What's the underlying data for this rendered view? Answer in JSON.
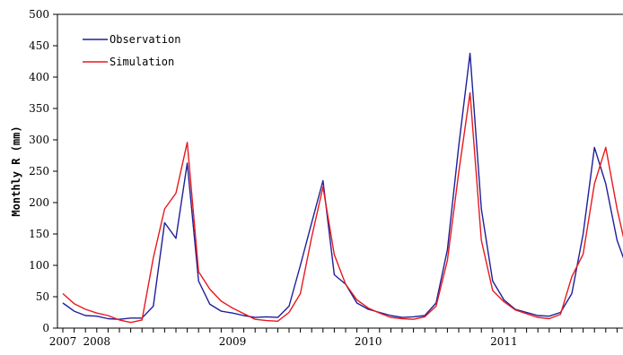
{
  "chart_data": {
    "type": "line",
    "title": "",
    "xlabel": "",
    "ylabel": "Monthly R (mm)",
    "ylim": [
      0,
      500
    ],
    "yticks": [
      0,
      50,
      100,
      150,
      200,
      250,
      300,
      350,
      400,
      450,
      500
    ],
    "xlim": [
      0,
      56
    ],
    "xtick_labels": [
      {
        "label": "2007",
        "x": 0
      },
      {
        "label": "2008",
        "x": 3
      },
      {
        "label": "2009",
        "x": 15
      },
      {
        "label": "2010",
        "x": 27
      },
      {
        "label": "2011",
        "x": 39
      }
    ],
    "legend": {
      "position": "top-left"
    },
    "grid": false,
    "series": [
      {
        "name": "Observation",
        "color": "#1f1f9a",
        "x": [
          0,
          1,
          2,
          3,
          4,
          5,
          6,
          7,
          8,
          9,
          10,
          11,
          12,
          13,
          14,
          15,
          16,
          17,
          18,
          19,
          20,
          21,
          22,
          23,
          24,
          25,
          26,
          27,
          28,
          29,
          30,
          31,
          32,
          33,
          34,
          35,
          36,
          37,
          38,
          39,
          40,
          41,
          42,
          43,
          44,
          45,
          46,
          47,
          48,
          49,
          50
        ],
        "values": [
          40,
          27,
          20,
          19,
          15,
          14,
          16,
          16,
          35,
          168,
          143,
          263,
          75,
          38,
          27,
          24,
          20,
          17,
          18,
          17,
          35,
          100,
          168,
          235,
          85,
          70,
          40,
          30,
          25,
          20,
          17,
          18,
          20,
          40,
          125,
          290,
          438,
          190,
          75,
          45,
          30,
          25,
          20,
          19,
          25,
          55,
          150,
          288,
          230,
          140,
          90
        ]
      },
      {
        "name": "Simulation",
        "color": "#e8191c",
        "x": [
          0,
          1,
          2,
          3,
          4,
          5,
          6,
          7,
          8,
          9,
          10,
          11,
          12,
          13,
          14,
          15,
          16,
          17,
          18,
          19,
          20,
          21,
          22,
          23,
          24,
          25,
          26,
          27,
          28,
          29,
          30,
          31,
          32,
          33,
          34,
          35,
          36,
          37,
          38,
          39,
          40,
          41,
          42,
          43,
          44,
          45,
          46,
          47,
          48,
          49,
          50
        ],
        "values": [
          55,
          39,
          30,
          24,
          20,
          13,
          9,
          13,
          112,
          190,
          215,
          296,
          90,
          62,
          43,
          32,
          23,
          14,
          12,
          11,
          25,
          55,
          145,
          225,
          117,
          70,
          45,
          32,
          24,
          17,
          15,
          14,
          18,
          35,
          108,
          248,
          375,
          140,
          60,
          42,
          29,
          23,
          17,
          15,
          22,
          82,
          118,
          230,
          288,
          190,
          110
        ]
      }
    ]
  }
}
